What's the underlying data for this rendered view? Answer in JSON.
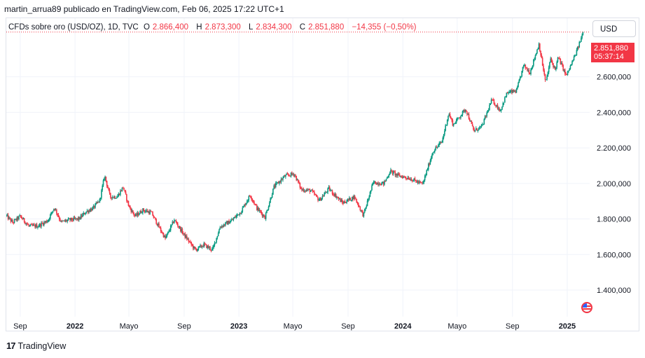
{
  "header": {
    "publisher": "martin_arrua89 publicado en TradingView.com, Feb 06, 2025 17:22 UTC+1"
  },
  "legend": {
    "symbol": "CFDs sobre oro (USD/OZ), 1D, TVC",
    "open_label": "O",
    "open": "2.866,400",
    "high_label": "H",
    "high": "2.873,300",
    "low_label": "L",
    "low": "2.834,300",
    "close_label": "C",
    "close": "2.851,880",
    "change": "−14,355 (−0,50%)"
  },
  "currency_button": "USD",
  "price_tag": {
    "price": "2.851,880",
    "countdown": "05:37:14"
  },
  "footer": {
    "brand": "TradingView",
    "logo": "17"
  },
  "colors": {
    "up": "#089981",
    "down": "#f23645",
    "grid": "#f0f3fa",
    "text": "#131722"
  },
  "chart_data": {
    "type": "candlestick",
    "title": "CFDs sobre oro (USD/OZ), 1D, TVC",
    "x_tick_labels": [
      "Sep",
      "2022",
      "Mayo",
      "Sep",
      "2023",
      "Mayo",
      "Sep",
      "2024",
      "Mayo",
      "Sep",
      "2025"
    ],
    "y_tick_labels": [
      "2.600,000",
      "2.400,000",
      "2.200,000",
      "2.000,000",
      "1.800,000",
      "1.600,000",
      "1.400,000"
    ],
    "y_ticks": [
      2600,
      2400,
      2200,
      2000,
      1800,
      1600,
      1400
    ],
    "ylim": [
      1250,
      2930
    ],
    "xlim": [
      "2021-08-01",
      "2025-02-20"
    ],
    "grid": true,
    "last_price": 2851.88,
    "closing_path": [
      [
        "2021-08-01",
        1818
      ],
      [
        "2021-08-15",
        1780
      ],
      [
        "2021-09-01",
        1815
      ],
      [
        "2021-09-20",
        1760
      ],
      [
        "2021-10-10",
        1760
      ],
      [
        "2021-11-01",
        1790
      ],
      [
        "2021-11-16",
        1865
      ],
      [
        "2021-12-01",
        1782
      ],
      [
        "2021-12-20",
        1795
      ],
      [
        "2022-01-10",
        1800
      ],
      [
        "2022-01-25",
        1840
      ],
      [
        "2022-02-10",
        1860
      ],
      [
        "2022-02-25",
        1905
      ],
      [
        "2022-03-08",
        2045
      ],
      [
        "2022-03-20",
        1925
      ],
      [
        "2022-04-05",
        1925
      ],
      [
        "2022-04-18",
        1980
      ],
      [
        "2022-05-01",
        1870
      ],
      [
        "2022-05-15",
        1815
      ],
      [
        "2022-06-01",
        1850
      ],
      [
        "2022-06-20",
        1835
      ],
      [
        "2022-07-10",
        1740
      ],
      [
        "2022-07-21",
        1690
      ],
      [
        "2022-08-10",
        1795
      ],
      [
        "2022-09-01",
        1710
      ],
      [
        "2022-09-26",
        1625
      ],
      [
        "2022-10-15",
        1655
      ],
      [
        "2022-11-03",
        1625
      ],
      [
        "2022-11-20",
        1755
      ],
      [
        "2022-12-15",
        1790
      ],
      [
        "2023-01-05",
        1840
      ],
      [
        "2023-01-26",
        1935
      ],
      [
        "2023-02-10",
        1860
      ],
      [
        "2023-02-28",
        1810
      ],
      [
        "2023-03-20",
        1980
      ],
      [
        "2023-04-13",
        2040
      ],
      [
        "2023-05-04",
        2055
      ],
      [
        "2023-05-20",
        1965
      ],
      [
        "2023-06-10",
        1960
      ],
      [
        "2023-06-29",
        1905
      ],
      [
        "2023-07-20",
        1970
      ],
      [
        "2023-08-20",
        1890
      ],
      [
        "2023-09-15",
        1925
      ],
      [
        "2023-10-05",
        1820
      ],
      [
        "2023-10-27",
        2005
      ],
      [
        "2023-11-20",
        2000
      ],
      [
        "2023-12-04",
        2070
      ],
      [
        "2023-12-20",
        2045
      ],
      [
        "2024-01-15",
        2030
      ],
      [
        "2024-02-14",
        1995
      ],
      [
        "2024-03-08",
        2180
      ],
      [
        "2024-03-28",
        2235
      ],
      [
        "2024-04-12",
        2395
      ],
      [
        "2024-04-22",
        2330
      ],
      [
        "2024-05-20",
        2420
      ],
      [
        "2024-06-07",
        2295
      ],
      [
        "2024-06-25",
        2320
      ],
      [
        "2024-07-17",
        2470
      ],
      [
        "2024-08-05",
        2410
      ],
      [
        "2024-08-20",
        2510
      ],
      [
        "2024-09-10",
        2520
      ],
      [
        "2024-09-26",
        2665
      ],
      [
        "2024-10-10",
        2625
      ],
      [
        "2024-10-30",
        2785
      ],
      [
        "2024-11-14",
        2565
      ],
      [
        "2024-11-25",
        2700
      ],
      [
        "2024-12-05",
        2640
      ],
      [
        "2024-12-12",
        2710
      ],
      [
        "2024-12-30",
        2605
      ],
      [
        "2025-01-20",
        2730
      ],
      [
        "2025-02-06",
        2852
      ]
    ]
  }
}
